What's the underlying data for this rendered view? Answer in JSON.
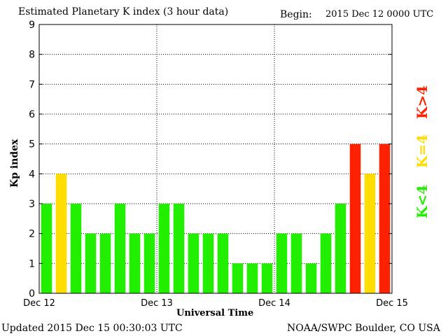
{
  "chart_data": {
    "type": "bar",
    "title": "Estimated Planetary K index (3 hour data)",
    "begin_label": "Begin:",
    "begin_value": "2015 Dec 12 0000 UTC",
    "xlabel": "Universal Time",
    "ylabel": "Kp index",
    "ylim": [
      0,
      9
    ],
    "yticks": [
      "0",
      "1",
      "2",
      "3",
      "4",
      "5",
      "6",
      "7",
      "8",
      "9"
    ],
    "xticks": [
      "Dec 12",
      "Dec 13",
      "Dec 14",
      "Dec 15"
    ],
    "values": [
      3,
      4,
      3,
      2,
      2,
      3,
      2,
      2,
      3,
      3,
      2,
      2,
      2,
      1,
      1,
      1,
      2,
      2,
      1,
      2,
      3,
      5,
      4,
      5
    ],
    "colors": {
      "low": "#22ee00",
      "equal": "#ffdd00",
      "high": "#ff2200"
    },
    "legend": {
      "low": "K<4",
      "equal": "K=4",
      "high": "K>4"
    },
    "grid": true
  },
  "footer": {
    "updated": "Updated 2015 Dec 15 00:30:03 UTC",
    "source": "NOAA/SWPC Boulder, CO USA"
  }
}
